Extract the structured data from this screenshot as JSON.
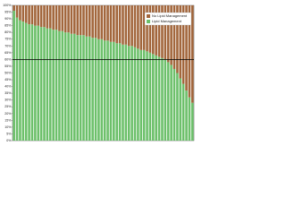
{
  "chart_data": {
    "type": "stacked-bar",
    "categories": [
      null,
      null,
      null,
      null,
      null,
      null,
      null,
      null,
      null,
      null,
      null,
      null,
      null,
      null,
      null,
      null,
      null,
      null,
      null,
      null,
      null,
      null,
      null,
      null,
      null,
      null,
      null,
      null,
      null,
      null,
      null,
      null,
      null,
      null,
      null,
      null,
      null,
      null,
      null,
      null,
      null,
      null,
      null,
      null,
      null,
      null,
      null,
      null,
      null,
      null,
      null,
      null,
      null,
      null,
      null,
      null,
      null,
      null,
      null,
      null
    ],
    "series": [
      {
        "name": "Lipid Management",
        "color": "#6cc06a",
        "values": [
          96,
          91,
          89,
          88,
          87,
          86,
          86,
          85,
          85,
          84,
          84,
          83,
          83,
          82,
          82,
          81,
          81,
          80,
          80,
          79,
          79,
          78,
          78,
          78,
          77,
          77,
          76,
          76,
          75,
          75,
          74,
          74,
          73,
          73,
          72,
          72,
          71,
          71,
          70,
          70,
          69,
          68,
          67,
          67,
          66,
          65,
          64,
          63,
          62,
          61,
          60,
          58,
          56,
          53,
          50,
          46,
          42,
          37,
          32,
          28
        ]
      },
      {
        "name": "No Lipid Management",
        "color": "#a2663c",
        "values": [
          4,
          9,
          11,
          12,
          13,
          14,
          14,
          15,
          15,
          16,
          16,
          17,
          17,
          18,
          18,
          19,
          19,
          20,
          20,
          21,
          21,
          22,
          22,
          22,
          23,
          23,
          24,
          24,
          25,
          25,
          26,
          26,
          27,
          27,
          28,
          28,
          29,
          29,
          30,
          30,
          31,
          32,
          33,
          33,
          34,
          35,
          36,
          37,
          38,
          39,
          40,
          42,
          44,
          47,
          50,
          54,
          58,
          63,
          68,
          72
        ]
      }
    ],
    "ylim": [
      0,
      100
    ],
    "yticks": [
      {
        "value": 0,
        "label": "0%"
      },
      {
        "value": 5,
        "label": "5%"
      },
      {
        "value": 10,
        "label": "10%"
      },
      {
        "value": 15,
        "label": "15%"
      },
      {
        "value": 20,
        "label": "20%"
      },
      {
        "value": 25,
        "label": "25%"
      },
      {
        "value": 30,
        "label": "30%"
      },
      {
        "value": 35,
        "label": "35%"
      },
      {
        "value": 40,
        "label": "40%"
      },
      {
        "value": 45,
        "label": "45%"
      },
      {
        "value": 50,
        "label": "50%"
      },
      {
        "value": 55,
        "label": "55%"
      },
      {
        "value": 60,
        "label": "60%"
      },
      {
        "value": 65,
        "label": "65%"
      },
      {
        "value": 70,
        "label": "70%"
      },
      {
        "value": 75,
        "label": "75%"
      },
      {
        "value": 80,
        "label": "80%"
      },
      {
        "value": 85,
        "label": "85%"
      },
      {
        "value": 90,
        "label": "90%"
      },
      {
        "value": 95,
        "label": "95%"
      },
      {
        "value": 100,
        "label": "100%"
      }
    ],
    "reference_line": 60,
    "legend": "top-right"
  }
}
